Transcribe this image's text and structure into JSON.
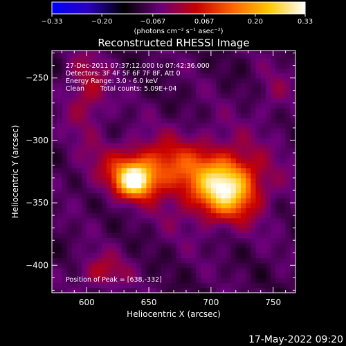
{
  "chart_data": {
    "type": "heatmap",
    "title": "Reconstructed RHESSI Image",
    "xlabel": "Heliocentric X (arcsec)",
    "ylabel": "Heliocentric Y (arcsec)",
    "xlim": [
      572,
      768
    ],
    "ylim": [
      -422,
      -228
    ],
    "x_ticks": [
      600,
      650,
      700,
      750
    ],
    "y_ticks": [
      -250,
      -300,
      -350,
      -400
    ],
    "x_ticks_labels": [
      "600",
      "650",
      "700",
      "750"
    ],
    "y_ticks_labels": [
      "−250",
      "−300",
      "−350",
      "−400"
    ],
    "colorbar": {
      "range": [
        -0.33,
        0.33
      ],
      "ticks": [
        -0.33,
        -0.2,
        -0.067,
        0.067,
        0.2,
        0.33
      ],
      "tick_labels": [
        "−0.33",
        "−0.20",
        "−0.067",
        "0.067",
        "0.20",
        "0.33"
      ],
      "units_label": "(photons cm⁻² s⁻¹ asec⁻²)",
      "colormap": [
        "#0000ff",
        "#2a00c0",
        "#000000",
        "#6a007a",
        "#c80000",
        "#ff6400",
        "#ffc800",
        "#ffffff"
      ]
    },
    "annotations": [
      "27-Dec-2011 07:37:12.000 to 07:42:36.000",
      "Detectors: 3F 4F 5F 6F 7F 8F, Att 0",
      "Energy Range: 3.0 - 6.0 keV",
      "Clean",
      "Total counts: 5.09E+04",
      "Position of Peak = [638,-332]"
    ],
    "sources": [
      {
        "name": "",
        "x": 638,
        "y": -332,
        "peak": 0.33,
        "sx": 10,
        "sy": 9
      },
      {
        "name": "",
        "x": 712,
        "y": -338,
        "peak": 0.31,
        "sx": 16,
        "sy": 15
      },
      {
        "name": "",
        "x": 650,
        "y": -322,
        "peak": 0.16,
        "sx": 30,
        "sy": 14
      },
      {
        "name": "",
        "x": 700,
        "y": -330,
        "peak": 0.1,
        "sx": 36,
        "sy": 26
      },
      {
        "name": "",
        "x": 600,
        "y": -262,
        "peak": 0.1,
        "sx": 12,
        "sy": 22
      },
      {
        "name": "",
        "x": 612,
        "y": -405,
        "peak": 0.1,
        "sx": 14,
        "sy": 10
      },
      {
        "name": "",
        "x": 750,
        "y": -262,
        "peak": 0.05,
        "sx": 10,
        "sy": 14
      }
    ],
    "background": -0.08
  },
  "footer": {
    "timestamp": "17-May-2022 09:20"
  }
}
